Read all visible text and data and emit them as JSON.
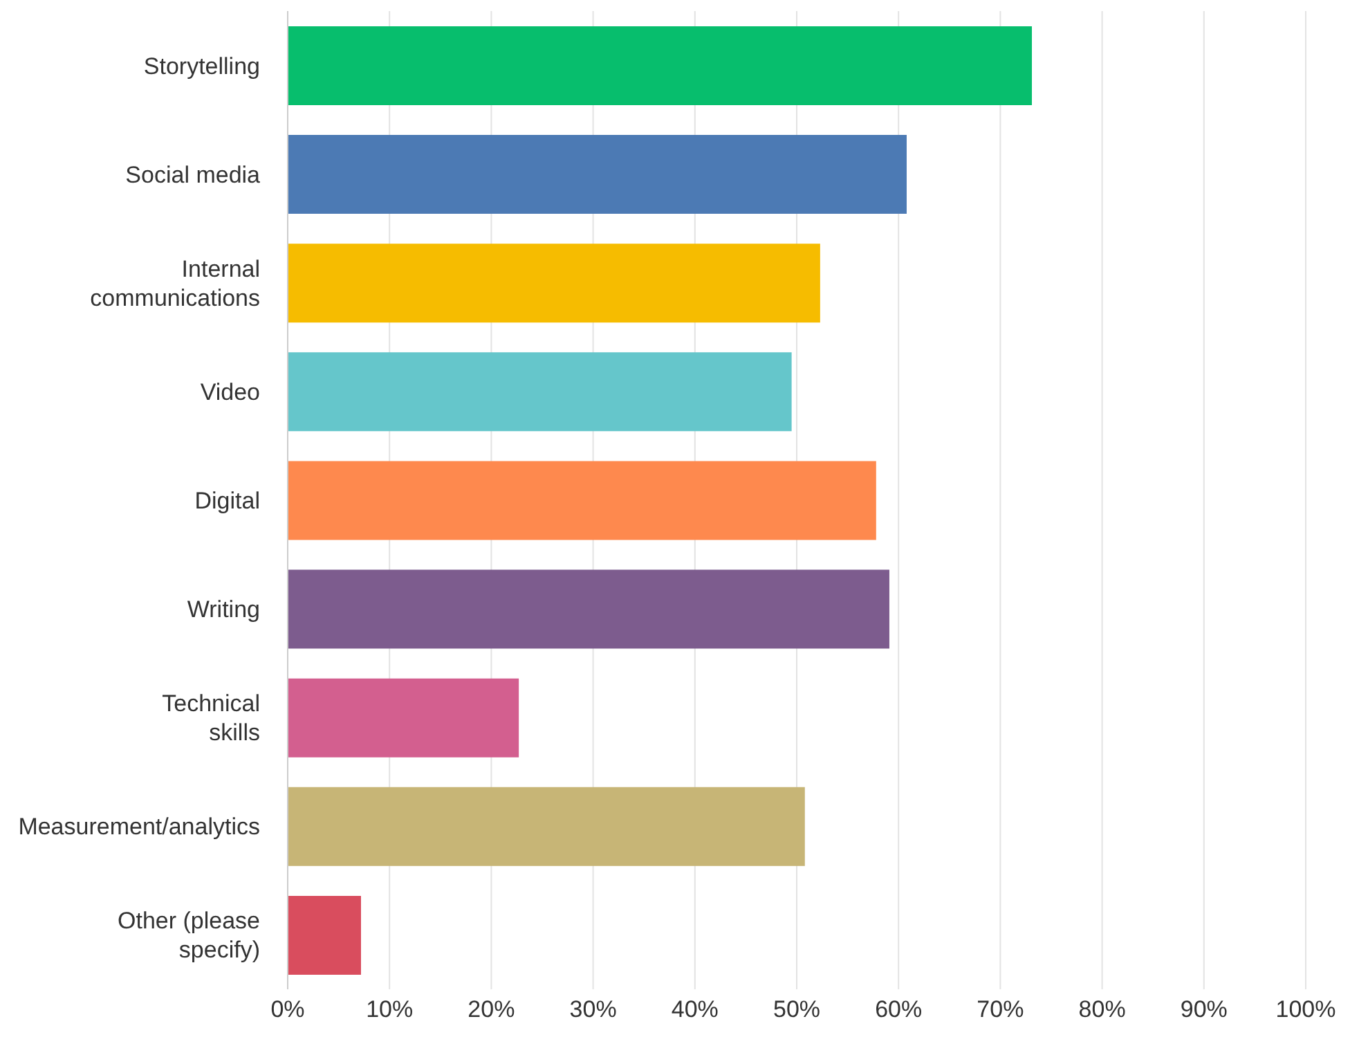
{
  "chart_data": {
    "type": "bar",
    "orientation": "horizontal",
    "categories": [
      "Storytelling",
      "Social media",
      "Internal communications",
      "Video",
      "Digital",
      "Writing",
      "Technical skills",
      "Measurement/analytics",
      "Other (please specify)"
    ],
    "values": [
      73.1,
      60.8,
      52.3,
      49.5,
      57.8,
      59.1,
      22.7,
      50.8,
      7.2
    ],
    "colors": [
      "#07be6d",
      "#4c7ab4",
      "#f6bc00",
      "#65c6cb",
      "#fe894e",
      "#7d5c8e",
      "#d35f8f",
      "#c7b576",
      "#d94d5e"
    ],
    "xlim": [
      0,
      100
    ],
    "xticks": [
      {
        "value": 0,
        "label": "0%"
      },
      {
        "value": 10,
        "label": "10%"
      },
      {
        "value": 20,
        "label": "20%"
      },
      {
        "value": 30,
        "label": "30%"
      },
      {
        "value": 40,
        "label": "40%"
      },
      {
        "value": 50,
        "label": "50%"
      },
      {
        "value": 60,
        "label": "60%"
      },
      {
        "value": 70,
        "label": "70%"
      },
      {
        "value": 80,
        "label": "80%"
      },
      {
        "value": 90,
        "label": "90%"
      },
      {
        "value": 100,
        "label": "100%"
      }
    ],
    "grid": "x"
  }
}
